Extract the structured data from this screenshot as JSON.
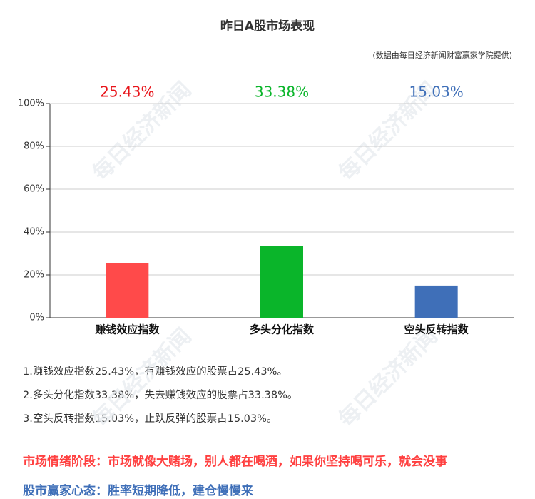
{
  "chart_data": {
    "type": "bar",
    "title": "昨日A股市场表现",
    "subtitle": "(数据由每日经济新闻财富赢家学院提供)",
    "categories": [
      "赚钱效应指数",
      "多头分化指数",
      "空头反转指数"
    ],
    "values": [
      25.43,
      33.38,
      15.03
    ],
    "value_labels": [
      "25.43%",
      "33.38%",
      "15.03%"
    ],
    "colors": [
      "#ff4a4a",
      "#0ab52a",
      "#3f6fb8"
    ],
    "label_colors": [
      "#e8141a",
      "#0ab52a",
      "#3f6fb8"
    ],
    "ylim": [
      0,
      100
    ],
    "yticks": [
      {
        "value": 0,
        "label": "0%"
      },
      {
        "value": 20,
        "label": "20%"
      },
      {
        "value": 40,
        "label": "40%"
      },
      {
        "value": 60,
        "label": "60%"
      },
      {
        "value": 80,
        "label": "80%"
      },
      {
        "value": 100,
        "label": "100%"
      }
    ],
    "grid": true
  },
  "notes": [
    "1.赚钱效应指数25.43%，有赚钱效应的股票占25.43%。",
    "2.多头分化指数33.38%，失去赚钱效应的股票占33.38%。",
    "3.空头反转指数15.03%，止跌反弹的股票占15.03%。"
  ],
  "sentiment": "市场情绪阶段：市场就像大赌场，别人都在喝酒，如果你坚持喝可乐，就会没事",
  "mindset": "股市赢家心态：胜率短期降低，建仓慢慢来",
  "watermark": "每日经济新闻"
}
